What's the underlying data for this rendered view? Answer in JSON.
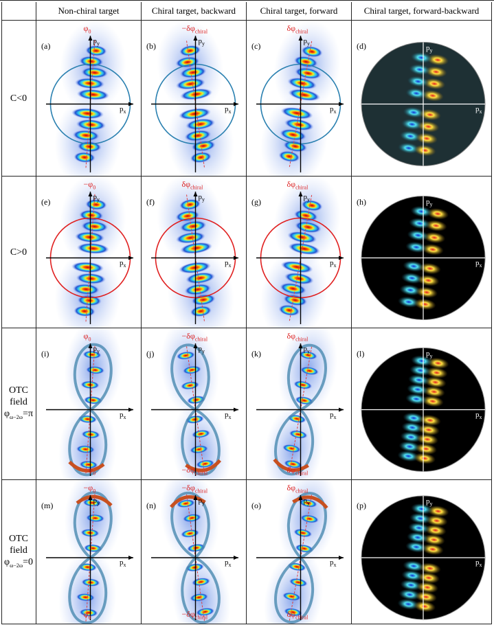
{
  "columns": [
    "Non-chiral target",
    "Chiral target, backward",
    "Chiral target, forward",
    "Chiral target, forward-backward"
  ],
  "axis_labels": {
    "x": {
      "base": "p",
      "sub": "x"
    },
    "y": {
      "base": "p",
      "sub": "y"
    }
  },
  "rows": [
    {
      "label": {
        "lines": [
          "C<0"
        ]
      },
      "panels": [
        {
          "tag": "(a)",
          "annotations": [
            {
              "base": "φ",
              "sub": "0"
            }
          ]
        },
        {
          "tag": "(b)",
          "annotations": [
            {
              "base": "−δφ",
              "sub": "chiral"
            }
          ]
        },
        {
          "tag": "(c)",
          "annotations": [
            {
              "base": "δφ",
              "sub": "chiral"
            }
          ]
        },
        {
          "tag": "(d)",
          "annotations": []
        }
      ]
    },
    {
      "label": {
        "lines": [
          "C>0"
        ]
      },
      "panels": [
        {
          "tag": "(e)",
          "annotations": [
            {
              "base": "−φ",
              "sub": "0"
            }
          ]
        },
        {
          "tag": "(f)",
          "annotations": [
            {
              "base": "δφ",
              "sub": "chiral"
            }
          ]
        },
        {
          "tag": "(g)",
          "annotations": [
            {
              "base": "δφ",
              "sub": "chiral"
            }
          ]
        },
        {
          "tag": "(h)",
          "annotations": []
        }
      ]
    },
    {
      "label": {
        "lines": [
          "OTC",
          "field"
        ],
        "formula": {
          "base": "φ",
          "sub": "ω−2ω",
          "tail": "=π"
        }
      },
      "panels": [
        {
          "tag": "(i)",
          "annotations": [
            {
              "base": "φ",
              "sub": "0"
            },
            {
              "base": "−φ",
              "sub": "0"
            }
          ]
        },
        {
          "tag": "(j)",
          "annotations": [
            {
              "base": "−δφ",
              "sub": "chiral"
            },
            {
              "base": "−δφ",
              "sub": "chiral"
            }
          ]
        },
        {
          "tag": "(k)",
          "annotations": [
            {
              "base": "δφ",
              "sub": "chiral"
            },
            {
              "base": "δφ",
              "sub": "chiral"
            }
          ]
        },
        {
          "tag": "(l)",
          "annotations": []
        }
      ]
    },
    {
      "label": {
        "lines": [
          "OTC",
          "field"
        ],
        "formula": {
          "base": "φ",
          "sub": "ω−2ω",
          "tail": "=0"
        }
      },
      "panels": [
        {
          "tag": "(m)",
          "annotations": [
            {
              "base": "−φ",
              "sub": "0"
            },
            {
              "base": "φ",
              "sub": "0"
            }
          ]
        },
        {
          "tag": "(n)",
          "annotations": [
            {
              "base": "−δφ",
              "sub": "chiral"
            },
            {
              "base": "−δφ",
              "sub": "chiral"
            }
          ]
        },
        {
          "tag": "(o)",
          "annotations": [
            {
              "base": "δφ",
              "sub": "chiral"
            },
            {
              "base": "δφ",
              "sub": "chiral"
            }
          ]
        },
        {
          "tag": "(p)",
          "annotations": []
        }
      ]
    }
  ]
}
